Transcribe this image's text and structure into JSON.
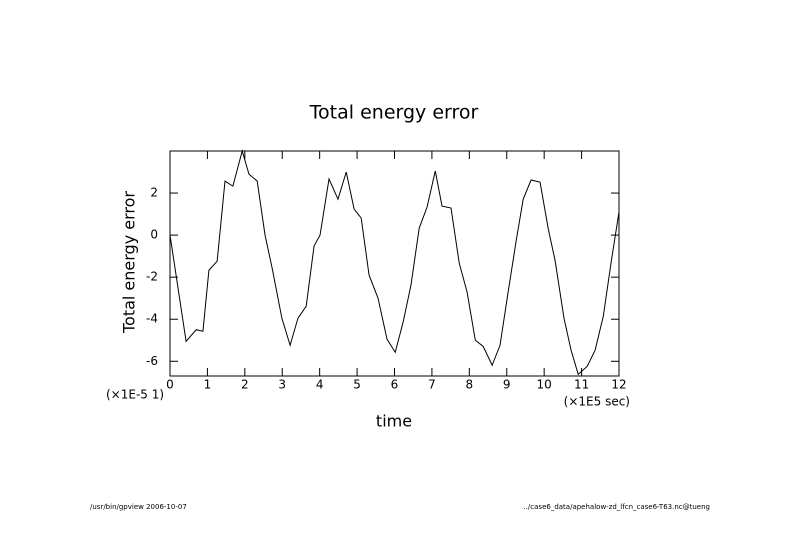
{
  "chart_data": {
    "type": "line",
    "title": "Total energy error",
    "ylabel": "Total energy error",
    "xlabel": "time",
    "ylabel_scale": "(×1E-5 1)",
    "xlabel_unit": "(×1E5 sec)",
    "footer_left": "/usr/bin/gpview  2006-10-07",
    "footer_right": "../case6_data/apehalow-zd_lfcn_case6-T63.nc@tueng",
    "color": "#000000",
    "x": [
      0,
      0.43,
      0.7,
      0.88,
      1.04,
      1.26,
      1.47,
      1.68,
      1.93,
      2.11,
      2.33,
      2.54,
      2.73,
      2.99,
      3.21,
      3.42,
      3.64,
      3.85,
      4.01,
      4.25,
      4.49,
      4.71,
      4.92,
      5.11,
      5.32,
      5.56,
      5.8,
      6.02,
      6.23,
      6.44,
      6.66,
      6.87,
      7.09,
      7.27,
      7.51,
      7.73,
      7.94,
      8.16,
      8.37,
      8.61,
      8.82,
      9.04,
      9.25,
      9.44,
      9.65,
      9.89,
      10.11,
      10.29,
      10.53,
      10.72,
      10.91,
      11.15,
      11.36,
      11.58,
      11.79,
      12.0
    ],
    "series": [
      {
        "name": "Total energy error",
        "color": "#000000",
        "values": [
          0,
          -5.05,
          -4.5,
          -4.57,
          -1.67,
          -1.24,
          2.57,
          2.33,
          4.0,
          2.9,
          2.57,
          0,
          -1.57,
          -3.95,
          -5.24,
          -3.95,
          -3.38,
          -0.52,
          0,
          2.67,
          1.71,
          3.0,
          1.24,
          0.81,
          -1.9,
          -3.0,
          -4.95,
          -5.57,
          -4.14,
          -2.38,
          0.33,
          1.33,
          3.05,
          1.38,
          1.29,
          -1.33,
          -2.71,
          -5.0,
          -5.29,
          -6.19,
          -5.24,
          -2.67,
          -0.29,
          1.71,
          2.62,
          2.52,
          0.29,
          -1.19,
          -3.95,
          -5.48,
          -6.62,
          -6.24,
          -5.48,
          -3.86,
          -1.29,
          1.1
        ]
      }
    ],
    "xlim": [
      0,
      12
    ],
    "xticks": [
      0,
      1,
      2,
      3,
      4,
      5,
      6,
      7,
      8,
      9,
      10,
      11,
      12
    ],
    "ylim": [
      -6.7,
      4
    ],
    "yticks": [
      -6,
      -4,
      -2,
      0,
      2
    ]
  }
}
